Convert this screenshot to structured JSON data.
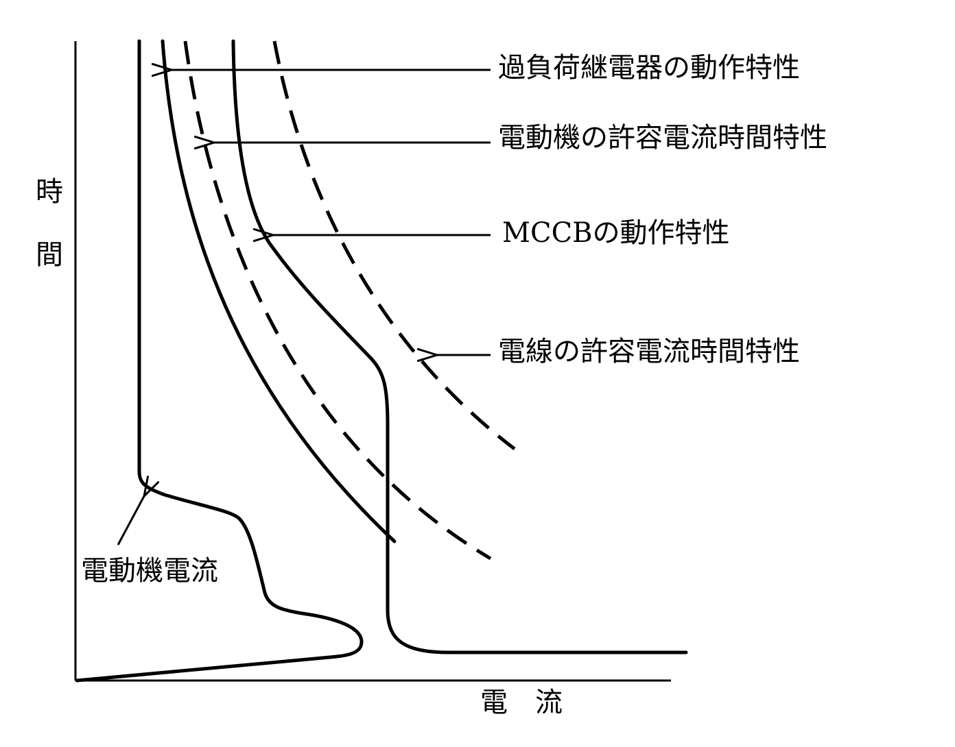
{
  "axes": {
    "y_label": "時間",
    "x_label": "電　流"
  },
  "labels": {
    "overload_relay": "過負荷継電器の動作特性",
    "motor_allowable": "電動機の許容電流時間特性",
    "mccb": "MCCBの動作特性",
    "wire_allowable": "電線の許容電流時間特性",
    "motor_current": "電動機電流"
  }
}
